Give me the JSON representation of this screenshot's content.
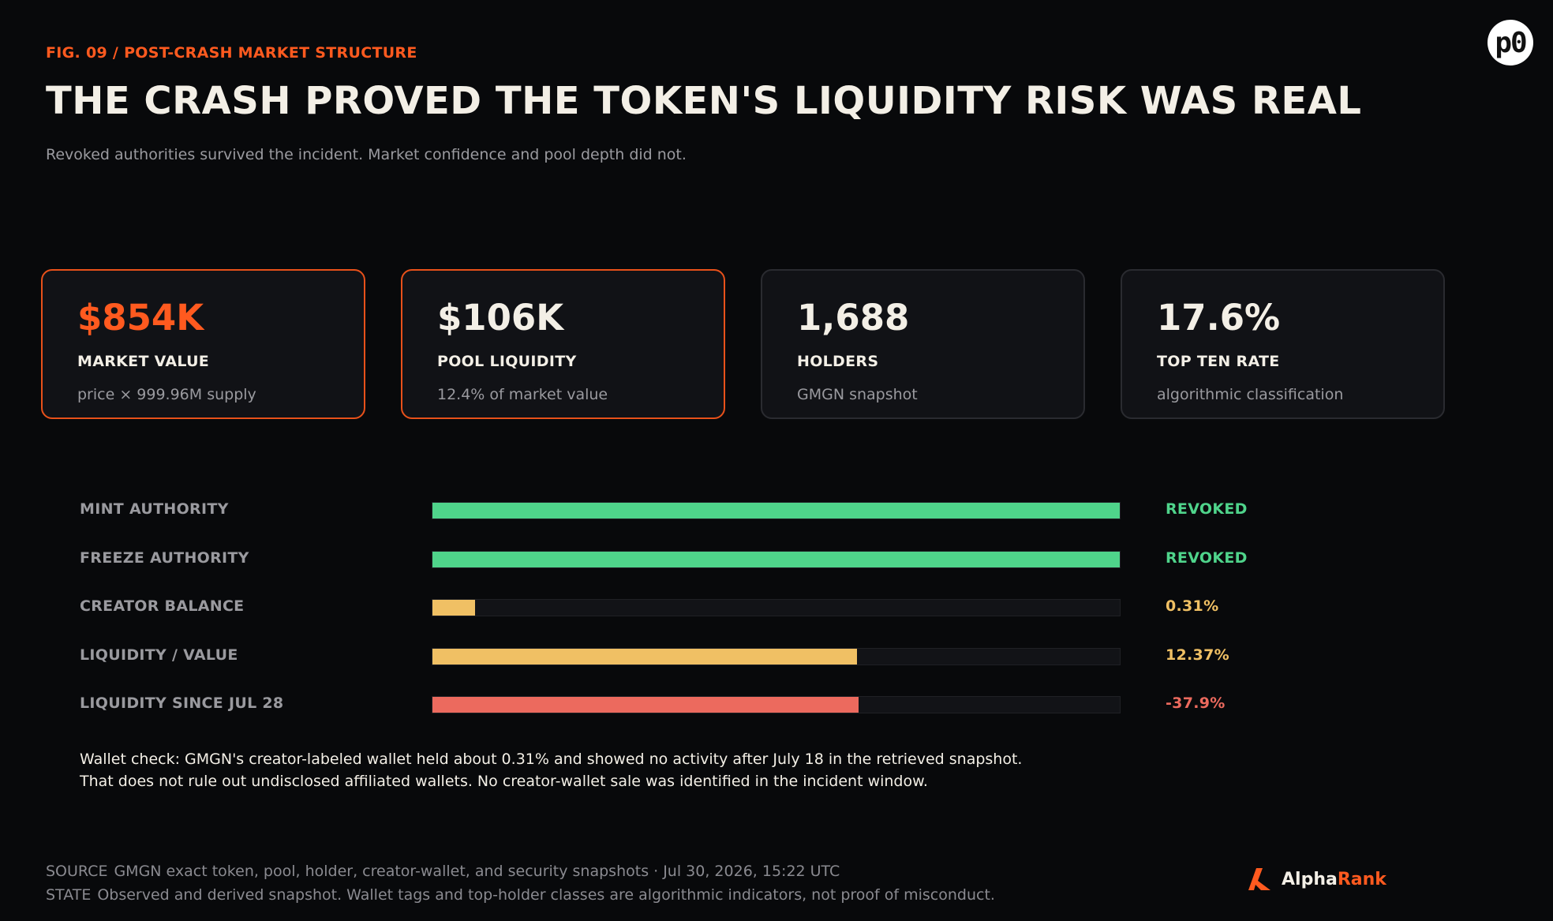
{
  "header": {
    "kicker": "FIG. 09 / POST-CRASH MARKET STRUCTURE",
    "title": "THE CRASH PROVED THE TOKEN'S LIQUIDITY RISK WAS REAL",
    "subtitle": "Revoked authorities survived the incident. Market confidence and pool depth did not.",
    "logo_text": "p0"
  },
  "cards": [
    {
      "value": "$854K",
      "label": "MARKET VALUE",
      "note": "price × 999.96M supply",
      "highlight": true,
      "accent_value": true
    },
    {
      "value": "$106K",
      "label": "POOL LIQUIDITY",
      "note": "12.4% of market value",
      "highlight": true,
      "accent_value": false
    },
    {
      "value": "1,688",
      "label": "HOLDERS",
      "note": "GMGN snapshot",
      "highlight": false,
      "accent_value": false
    },
    {
      "value": "17.6%",
      "label": "TOP TEN RATE",
      "note": "algorithmic classification",
      "highlight": false,
      "accent_value": false
    }
  ],
  "chart_data": {
    "type": "bar",
    "orientation": "horizontal",
    "categories": [
      "MINT AUTHORITY",
      "FREEZE AUTHORITY",
      "CREATOR BALANCE",
      "LIQUIDITY / VALUE",
      "LIQUIDITY SINCE JUL 28"
    ],
    "value_labels": [
      "REVOKED",
      "REVOKED",
      "0.31%",
      "12.37%",
      "-37.9%"
    ],
    "fill_fraction": [
      1.0,
      1.0,
      0.062,
      0.618,
      0.62
    ],
    "colors": [
      "#4fd48b",
      "#4fd48b",
      "#f0c064",
      "#f0c064",
      "#ec6a5e"
    ]
  },
  "wallet_note": {
    "line1": "Wallet check: GMGN's creator-labeled wallet held about 0.31% and showed no activity after July 18 in the retrieved snapshot.",
    "line2": "That does not rule out undisclosed affiliated wallets. No creator-wallet sale was identified in the incident window."
  },
  "footer": {
    "source_key": "SOURCE",
    "source_text": "GMGN exact token, pool, holder, creator-wallet, and security snapshots · Jul 30, 2026, 15:22 UTC",
    "state_key": "STATE",
    "state_text": "Observed and derived snapshot. Wallet tags and top-holder classes are algorithmic indicators, not proof of misconduct."
  },
  "brand": {
    "part1": "Alpha",
    "part2": "Rank",
    "icon": "alpharank-logo-icon"
  },
  "colors": {
    "accent": "#ff5a1f",
    "green": "#4fd48b",
    "amber": "#f0c064",
    "red": "#ec6a5e"
  }
}
